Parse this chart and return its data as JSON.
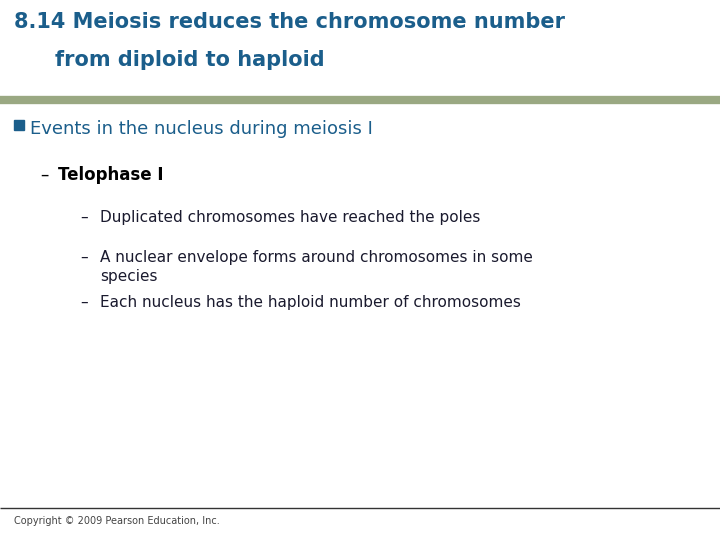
{
  "title_line1": "8.14 Meiosis reduces the chromosome number",
  "title_line2": "from diploid to haploid",
  "title_color": "#1B5E8B",
  "title_fontsize": 15,
  "separator_color": "#9AA882",
  "bullet_color": "#1B5E8B",
  "bullet_text": "Events in the nucleus during meiosis I",
  "bullet_fontsize": 13,
  "sub_bullet_text": "Telophase I",
  "sub_bullet_fontsize": 12,
  "sub_bullet_color": "#000000",
  "items": [
    "Duplicated chromosomes have reached the poles",
    "A nuclear envelope forms around chromosomes in some\nspecies",
    "Each nucleus has the haploid number of chromosomes"
  ],
  "items_fontsize": 11,
  "items_color": "#1a1a2e",
  "dash_color": "#1a1a2e",
  "copyright_text": "Copyright © 2009 Pearson Education, Inc.",
  "copyright_fontsize": 7,
  "bg_color": "#FFFFFF"
}
